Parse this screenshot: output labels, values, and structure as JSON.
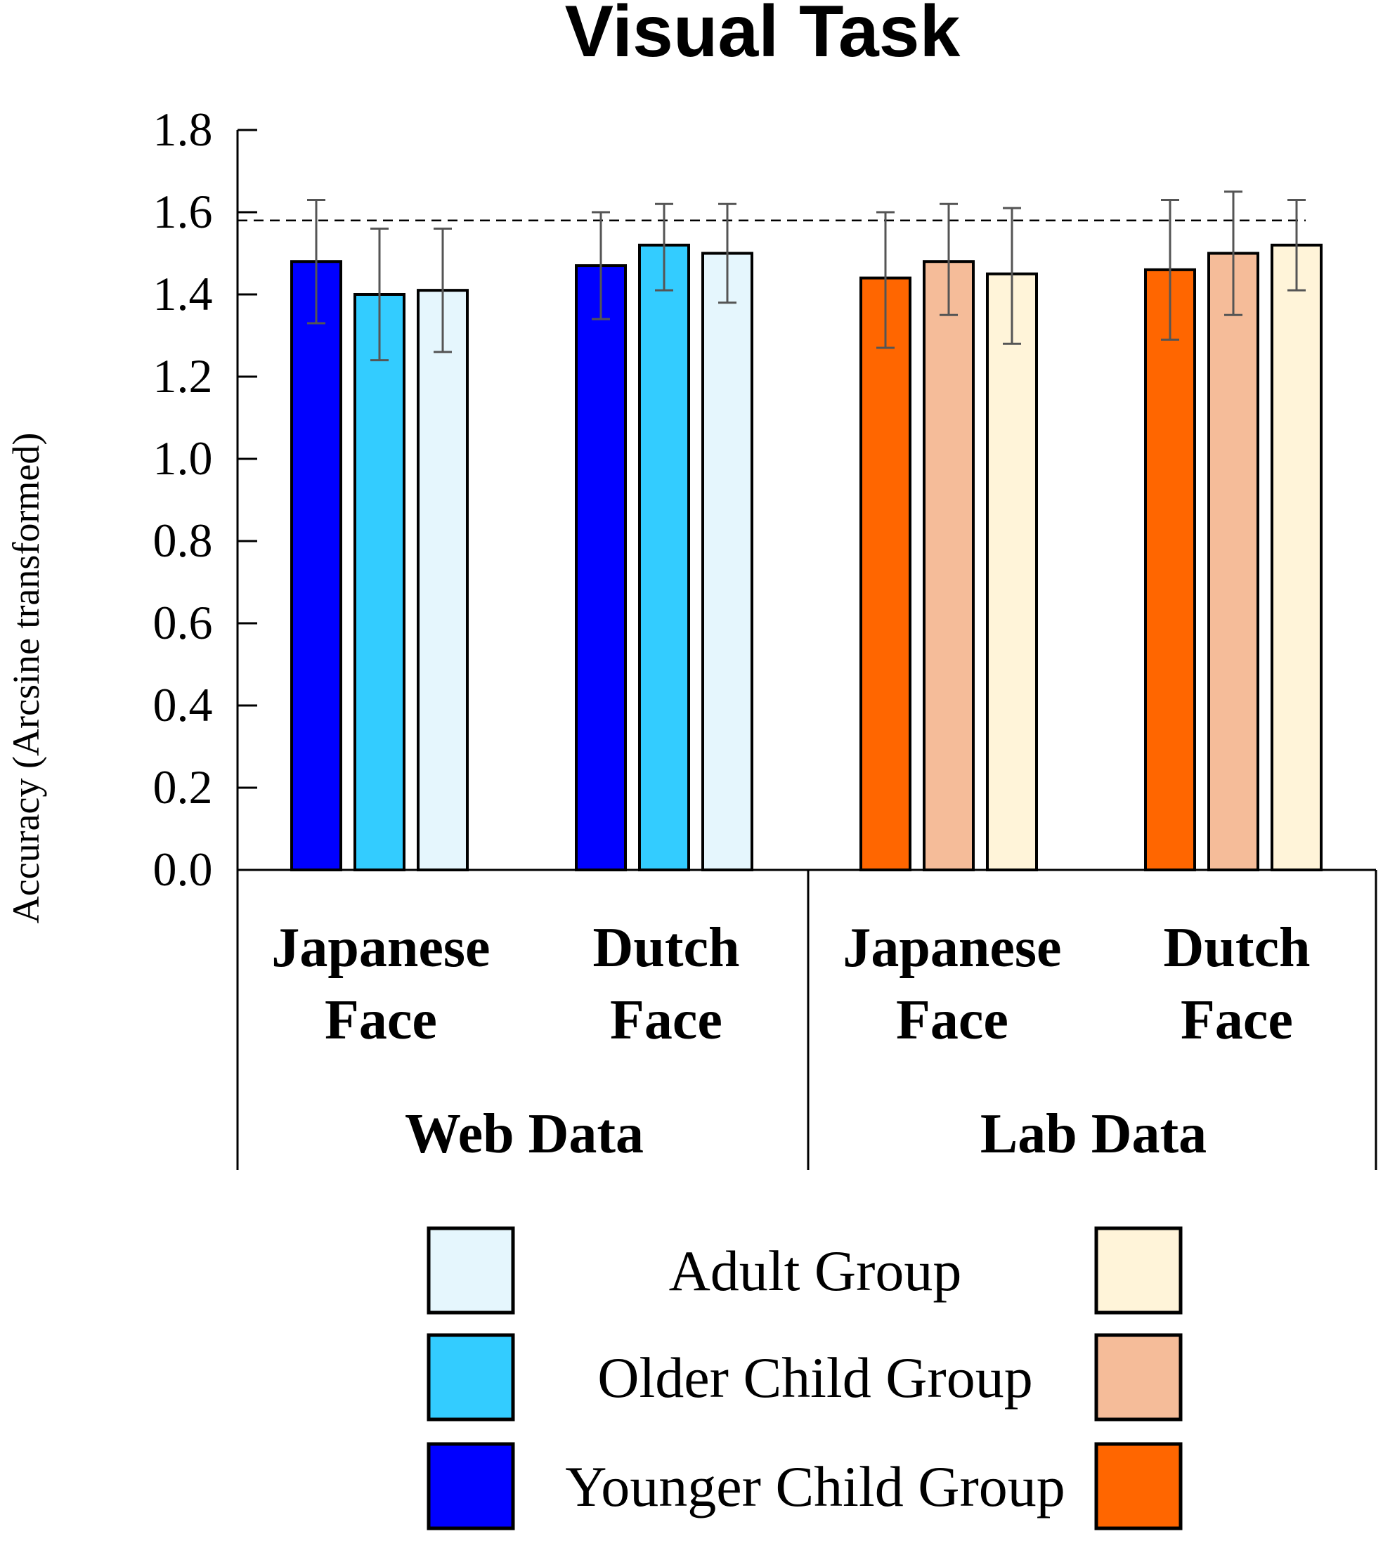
{
  "chart_data": {
    "type": "bar",
    "title": "Visual Task",
    "ylabel": "Accuracy (Arcsine transformed)",
    "xlabel": "",
    "ylim": [
      0,
      1.8
    ],
    "yticks": [
      "0.0",
      "0.2",
      "0.4",
      "0.6",
      "0.8",
      "1.0",
      "1.2",
      "1.4",
      "1.6",
      "1.8"
    ],
    "reference_line": 1.58,
    "groups": [
      {
        "name": "Web Data",
        "categories": [
          {
            "line1": "Japanese",
            "line2": "Face"
          },
          {
            "line1": "Dutch",
            "line2": "Face"
          }
        ]
      },
      {
        "name": "Lab Data",
        "categories": [
          {
            "line1": "Japanese",
            "line2": "Face"
          },
          {
            "line1": "Dutch",
            "line2": "Face"
          }
        ]
      }
    ],
    "series": [
      {
        "name": "Younger Child Group",
        "colors": [
          "#0000FF",
          "#FF6600"
        ],
        "values": [
          1.48,
          1.47,
          1.44,
          1.46
        ],
        "err_low": [
          1.33,
          1.34,
          1.27,
          1.29
        ],
        "err_high": [
          1.63,
          1.6,
          1.6,
          1.63
        ]
      },
      {
        "name": "Older Child Group",
        "colors": [
          "#33CCFF",
          "#F5BC99"
        ],
        "values": [
          1.4,
          1.52,
          1.48,
          1.5
        ],
        "err_low": [
          1.24,
          1.41,
          1.35,
          1.35
        ],
        "err_high": [
          1.56,
          1.62,
          1.62,
          1.65
        ]
      },
      {
        "name": "Adult Group",
        "colors": [
          "#E5F6FD",
          "#FFF4D9"
        ],
        "values": [
          1.41,
          1.5,
          1.45,
          1.52
        ],
        "err_low": [
          1.26,
          1.38,
          1.28,
          1.41
        ],
        "err_high": [
          1.56,
          1.62,
          1.61,
          1.63
        ]
      }
    ],
    "legend": {
      "placement": "bottom",
      "order": [
        "Adult Group",
        "Older Child Group",
        "Younger Child Group"
      ]
    }
  }
}
